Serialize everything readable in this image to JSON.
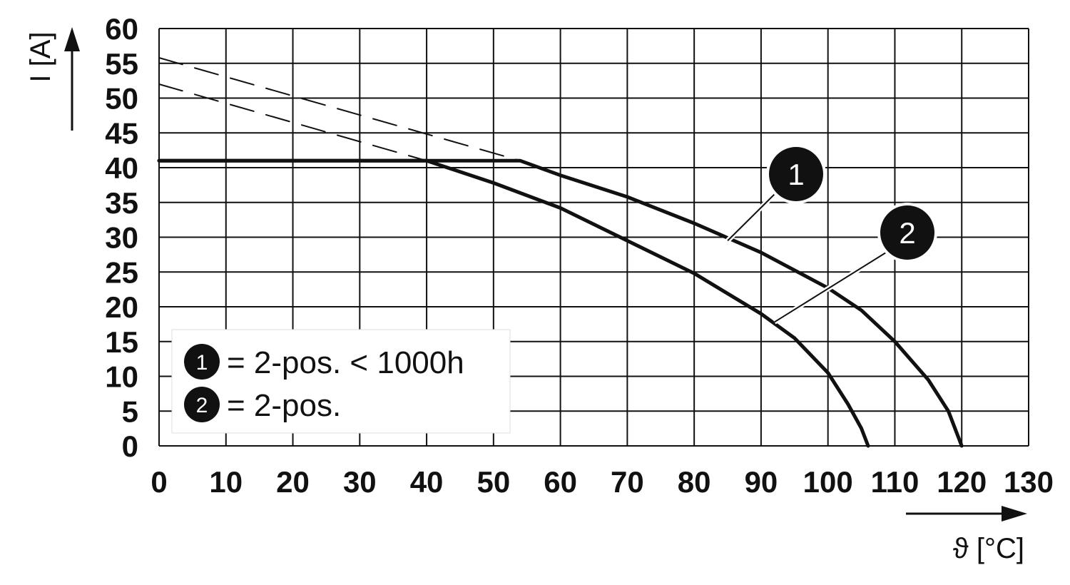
{
  "chart_data": {
    "type": "line",
    "xlabel": "ϑ [°C]",
    "ylabel": "I [A]",
    "xlim": [
      0,
      130
    ],
    "ylim": [
      0,
      60
    ],
    "x_ticks": [
      "0",
      "10",
      "20",
      "30",
      "40",
      "50",
      "60",
      "70",
      "80",
      "90",
      "100",
      "110",
      "120",
      "130"
    ],
    "y_ticks": [
      "0",
      "5",
      "10",
      "15",
      "20",
      "25",
      "30",
      "35",
      "40",
      "45",
      "50",
      "55",
      "60"
    ],
    "grid": true,
    "legend_position": "bottom-left",
    "legend": [
      {
        "marker": "1",
        "text": "= 2-pos. < 1000h"
      },
      {
        "marker": "2",
        "text": "= 2-pos."
      }
    ],
    "series": [
      {
        "marker": "1",
        "style": "solid",
        "x": [
          0,
          54,
          60,
          70,
          80,
          90,
          100,
          105,
          110,
          115,
          118,
          120
        ],
        "y": [
          41,
          41,
          38.9,
          35.8,
          32,
          27.8,
          22.7,
          19.5,
          15,
          9.5,
          5,
          0
        ]
      },
      {
        "marker": "2",
        "style": "solid",
        "x": [
          0,
          40,
          50,
          60,
          70,
          80,
          90,
          95,
          100,
          103,
          105,
          106
        ],
        "y": [
          41,
          41,
          37.8,
          34.2,
          29.5,
          24.8,
          19,
          15.5,
          10.5,
          6,
          2.5,
          0
        ]
      },
      {
        "style": "dashed",
        "x": [
          0,
          54
        ],
        "y": [
          55.8,
          41
        ]
      },
      {
        "style": "dashed",
        "x": [
          0,
          40
        ],
        "y": [
          52,
          41
        ]
      }
    ],
    "callouts": [
      {
        "marker": "1",
        "x": 85,
        "y": 29.5
      },
      {
        "marker": "2",
        "x": 92,
        "y": 17.8
      }
    ]
  }
}
